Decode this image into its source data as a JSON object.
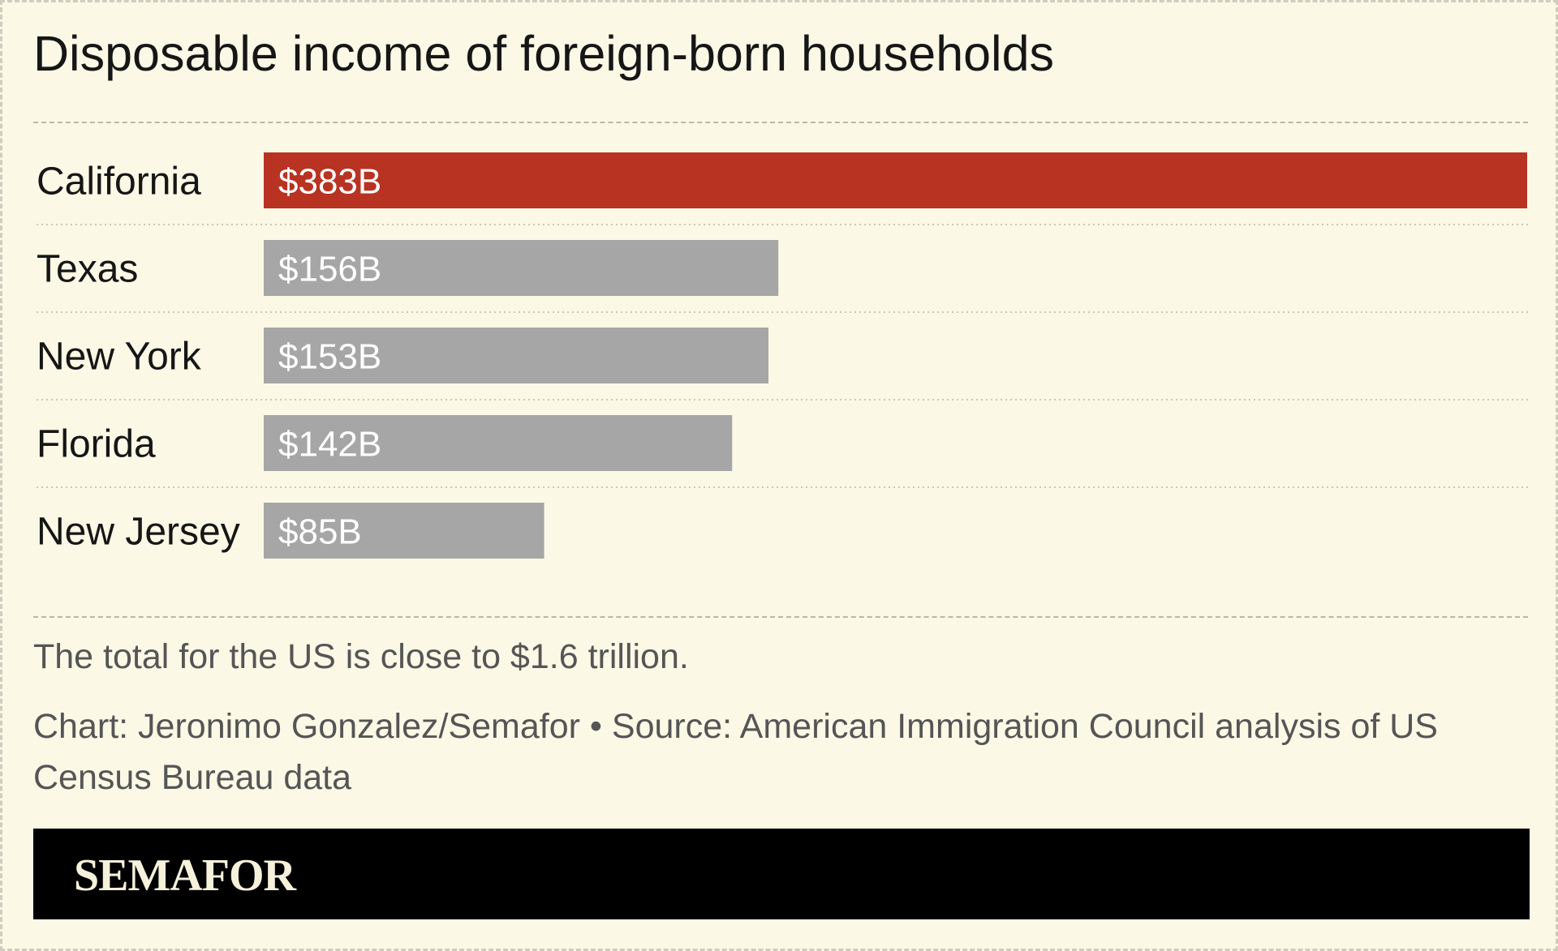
{
  "title": "Disposable income of foreign-born households",
  "chart_data": {
    "type": "bar",
    "orientation": "horizontal",
    "categories": [
      "California",
      "Texas",
      "New York",
      "Florida",
      "New Jersey"
    ],
    "values": [
      383,
      156,
      153,
      142,
      85
    ],
    "value_labels": [
      "$383B",
      "$156B",
      "$153B",
      "$142B",
      "$85B"
    ],
    "unit": "B",
    "highlight_index": 0,
    "highlight_color": "#b93322",
    "bar_color": "#a7a6a6",
    "xlim": [
      0,
      383
    ],
    "grid": false,
    "legend": "none"
  },
  "note": "The total for the US is close to $1.6 trillion.",
  "source": "Chart: Jeronimo Gonzalez/Semafor • Source: American Immigration Council analysis of US Census Bureau data",
  "brand": "SEMAFOR"
}
